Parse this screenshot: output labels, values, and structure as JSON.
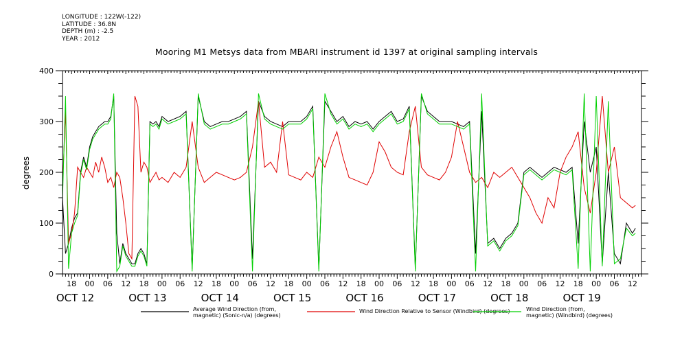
{
  "header": {
    "longitude": "LONGITUDE : 122W(-122)",
    "latitude": "LATITUDE : 36.8N",
    "depth": "DEPTH (m) : -2.5",
    "year": "YEAR : 2012"
  },
  "chart_data": {
    "type": "line",
    "title": "Mooring M1 Metsys data from MBARI instrument id 1397 at original sampling intervals",
    "xlabel": "",
    "ylabel": "degrees",
    "ylim": [
      0,
      400
    ],
    "yticks": [
      0,
      100,
      200,
      300,
      400
    ],
    "x_unit": "hours since 2012-10-11 18:00",
    "xlim": [
      -3,
      189
    ],
    "x_tick_labels": [
      "18",
      "00",
      "06",
      "12",
      "18",
      "00",
      "06",
      "12",
      "18",
      "00",
      "06",
      "12",
      "18",
      "00",
      "06",
      "12",
      "18",
      "00",
      "06",
      "12",
      "18",
      "00",
      "06",
      "12",
      "18",
      "00",
      "06",
      "12",
      "18",
      "00",
      "06",
      "12"
    ],
    "date_labels": [
      "OCT 12",
      "OCT 13",
      "OCT 14",
      "OCT 15",
      "OCT 16",
      "OCT 17",
      "OCT 18",
      "OCT 19"
    ],
    "grid": false,
    "legend_position": "bottom",
    "series": [
      {
        "name": "Average Wind Direction (from, magnetic) (Sonic-n/a) (degrees)",
        "color": "#000000",
        "x": [
          -3,
          -2,
          -1,
          0,
          1,
          2,
          3,
          4,
          5,
          6,
          7,
          8,
          9,
          10,
          11,
          12,
          13,
          14,
          15,
          16,
          17,
          18,
          19,
          20,
          21,
          22,
          23,
          24,
          25,
          26,
          27,
          28,
          29,
          30,
          32,
          34,
          36,
          38,
          40,
          42,
          44,
          46,
          48,
          50,
          52,
          54,
          56,
          58,
          60,
          62,
          64,
          66,
          68,
          70,
          72,
          74,
          76,
          78,
          80,
          82,
          84,
          86,
          88,
          90,
          92,
          94,
          96,
          98,
          100,
          102,
          104,
          106,
          108,
          110,
          112,
          114,
          116,
          118,
          120,
          122,
          124,
          126,
          128,
          130,
          132,
          134,
          136,
          138,
          140,
          142,
          144,
          146,
          148,
          150,
          152,
          154,
          156,
          158,
          160,
          162,
          164,
          166,
          168,
          170,
          172,
          174,
          176,
          178,
          180,
          182,
          184,
          186,
          187
        ],
        "y": [
          150,
          40,
          60,
          90,
          110,
          120,
          200,
          230,
          210,
          250,
          270,
          280,
          290,
          295,
          300,
          300,
          310,
          350,
          80,
          20,
          60,
          40,
          30,
          20,
          20,
          40,
          50,
          40,
          20,
          300,
          295,
          300,
          290,
          310,
          300,
          305,
          310,
          320,
          10,
          350,
          300,
          290,
          295,
          300,
          300,
          305,
          310,
          320,
          30,
          340,
          310,
          300,
          295,
          290,
          300,
          300,
          300,
          310,
          330,
          10,
          340,
          320,
          300,
          310,
          290,
          300,
          295,
          300,
          285,
          300,
          310,
          320,
          300,
          305,
          330,
          10,
          350,
          320,
          310,
          300,
          300,
          300,
          295,
          290,
          300,
          40,
          320,
          60,
          70,
          50,
          70,
          80,
          100,
          200,
          210,
          200,
          190,
          200,
          210,
          205,
          200,
          210,
          60,
          300,
          200,
          250,
          20,
          200,
          40,
          20,
          100,
          80,
          90
        ]
      },
      {
        "name": "Wind Direction Relative to Sensor (Windbird) (degrees)",
        "color": "#e00000",
        "x": [
          -3,
          -2,
          -1,
          0,
          1,
          2,
          3,
          4,
          5,
          6,
          7,
          8,
          9,
          10,
          11,
          12,
          13,
          14,
          15,
          16,
          17,
          18,
          19,
          20,
          21,
          22,
          23,
          24,
          25,
          26,
          27,
          28,
          29,
          30,
          32,
          34,
          36,
          38,
          40,
          42,
          44,
          46,
          48,
          50,
          52,
          54,
          56,
          58,
          60,
          62,
          64,
          66,
          68,
          70,
          72,
          74,
          76,
          78,
          80,
          82,
          84,
          86,
          88,
          90,
          92,
          94,
          96,
          98,
          100,
          102,
          104,
          106,
          108,
          110,
          112,
          114,
          116,
          118,
          120,
          122,
          124,
          126,
          128,
          130,
          132,
          134,
          136,
          138,
          140,
          142,
          144,
          146,
          148,
          150,
          152,
          154,
          156,
          158,
          160,
          162,
          164,
          166,
          168,
          170,
          172,
          174,
          176,
          178,
          180,
          182,
          184,
          186,
          187
        ],
        "y": [
          170,
          320,
          60,
          80,
          120,
          210,
          200,
          190,
          210,
          200,
          190,
          220,
          200,
          230,
          210,
          180,
          190,
          170,
          200,
          190,
          150,
          100,
          40,
          30,
          350,
          330,
          200,
          220,
          210,
          180,
          190,
          200,
          185,
          190,
          180,
          200,
          190,
          210,
          300,
          210,
          180,
          190,
          200,
          195,
          190,
          185,
          190,
          200,
          250,
          340,
          210,
          220,
          200,
          300,
          195,
          190,
          185,
          200,
          190,
          230,
          210,
          250,
          280,
          230,
          190,
          185,
          180,
          175,
          200,
          260,
          240,
          210,
          200,
          195,
          280,
          330,
          210,
          195,
          190,
          185,
          200,
          230,
          300,
          250,
          200,
          180,
          190,
          170,
          200,
          190,
          200,
          210,
          190,
          170,
          150,
          120,
          100,
          150,
          130,
          200,
          230,
          250,
          280,
          170,
          120,
          200,
          350,
          200,
          250,
          150,
          140,
          130,
          135
        ]
      },
      {
        "name": "Wind Direction (from, magnetic) (Windbird) (degrees)",
        "color": "#00d000",
        "x": [
          -3,
          -2,
          -1,
          0,
          1,
          2,
          3,
          4,
          5,
          6,
          7,
          8,
          9,
          10,
          11,
          12,
          13,
          14,
          15,
          16,
          17,
          18,
          19,
          20,
          21,
          22,
          23,
          24,
          25,
          26,
          27,
          28,
          29,
          30,
          32,
          34,
          36,
          38,
          40,
          42,
          44,
          46,
          48,
          50,
          52,
          54,
          56,
          58,
          60,
          62,
          64,
          66,
          68,
          70,
          72,
          74,
          76,
          78,
          80,
          82,
          84,
          86,
          88,
          90,
          92,
          94,
          96,
          98,
          100,
          102,
          104,
          106,
          108,
          110,
          112,
          114,
          116,
          118,
          120,
          122,
          124,
          126,
          128,
          130,
          132,
          134,
          136,
          138,
          140,
          142,
          144,
          146,
          148,
          150,
          152,
          154,
          156,
          158,
          160,
          162,
          164,
          166,
          168,
          170,
          172,
          174,
          176,
          178,
          180,
          182,
          184,
          186,
          187
        ],
        "y": [
          145,
          350,
          10,
          80,
          100,
          115,
          195,
          225,
          205,
          245,
          265,
          275,
          285,
          290,
          295,
          295,
          305,
          355,
          5,
          15,
          55,
          35,
          25,
          15,
          15,
          35,
          45,
          35,
          15,
          295,
          290,
          295,
          285,
          305,
          295,
          300,
          305,
          315,
          5,
          355,
          295,
          285,
          290,
          295,
          295,
          300,
          305,
          315,
          5,
          355,
          305,
          295,
          290,
          285,
          295,
          295,
          295,
          305,
          325,
          5,
          355,
          315,
          295,
          305,
          285,
          295,
          290,
          295,
          280,
          295,
          305,
          315,
          295,
          300,
          325,
          5,
          355,
          315,
          305,
          295,
          295,
          295,
          290,
          285,
          295,
          5,
          355,
          55,
          65,
          45,
          65,
          75,
          95,
          195,
          205,
          195,
          185,
          195,
          205,
          200,
          195,
          205,
          10,
          355,
          5,
          350,
          15,
          340,
          20,
          30,
          90,
          75,
          80
        ]
      }
    ]
  },
  "legend": {
    "s1_line1": "Average Wind Direction (from,",
    "s1_line2": "magnetic) (Sonic-n/a) (degrees)",
    "s2_line1": "Wind Direction Relative to Sensor (Windbird) (degrees)",
    "s3_line1": "Wind Direction (from,",
    "s3_line2": "magnetic) (Windbird) (degrees)"
  }
}
